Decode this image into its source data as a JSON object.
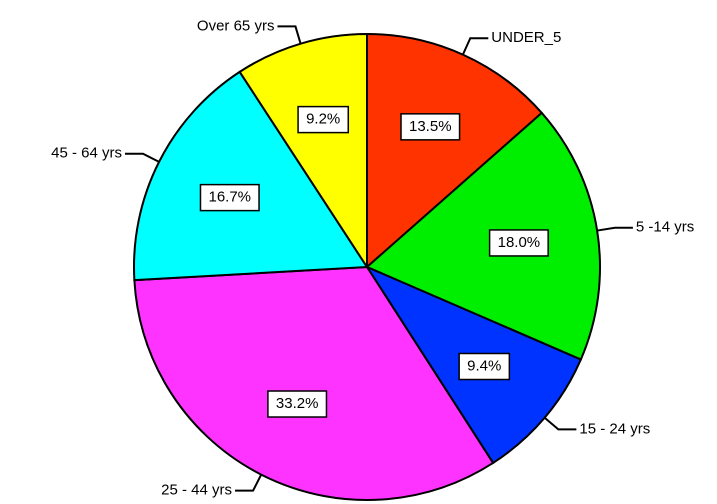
{
  "chart_data": {
    "type": "pie",
    "categories": [
      "UNDER_5",
      "5 -14 yrs",
      "15 - 24 yrs",
      "25 - 44 yrs",
      "45 - 64 yrs",
      "Over 65 yrs"
    ],
    "values": [
      13.5,
      18.0,
      9.4,
      33.2,
      16.7,
      9.2
    ],
    "value_labels": [
      "13.5%",
      "18.0%",
      "9.4%",
      "33.2%",
      "16.7%",
      "9.2%"
    ],
    "colors": [
      "#ff3300",
      "#00ee00",
      "#0033ff",
      "#ff33ff",
      "#00ffff",
      "#ffff00"
    ]
  }
}
